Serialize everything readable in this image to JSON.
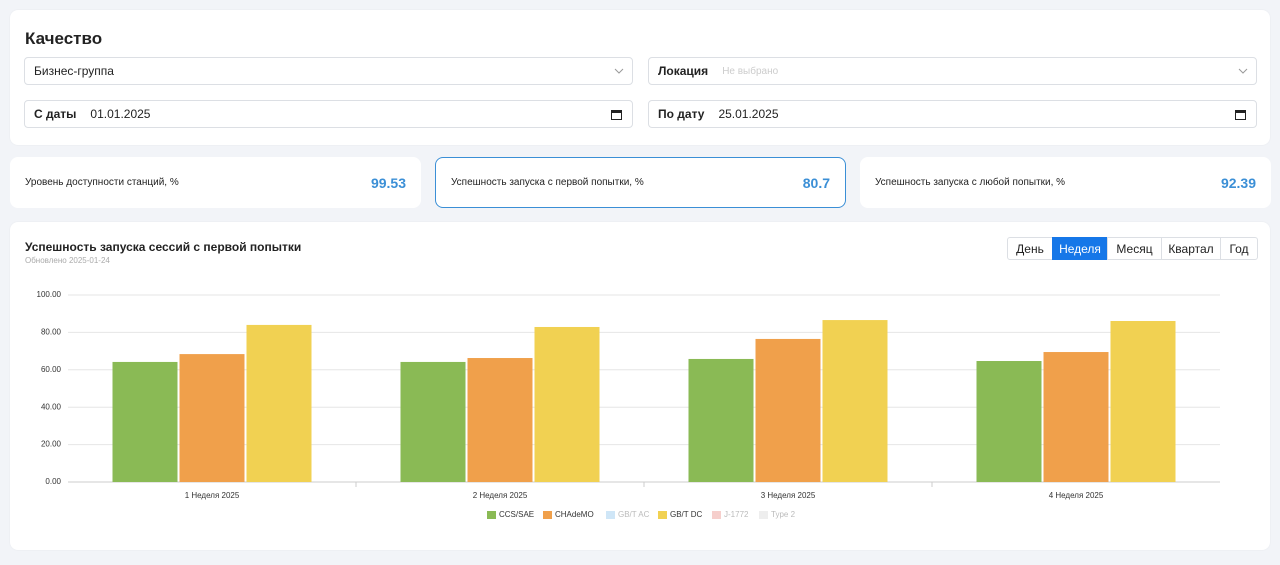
{
  "header": {
    "title": "Качество"
  },
  "filters": {
    "business_group": "Бизнес-группа",
    "location": {
      "label": "Локация",
      "placeholder": "Не выбрано"
    },
    "date_from": {
      "label": "С даты",
      "value": "01.01.2025"
    },
    "date_to": {
      "label": "По дату",
      "value": "25.01.2025"
    }
  },
  "kpis": [
    {
      "label": "Уровень доступности станций, %",
      "value": 99.53
    },
    {
      "label": "Успешность запуска с первой попытки, %",
      "value": 80.7
    },
    {
      "label": "Успешность запуска с любой попытки, %",
      "value": 92.39
    }
  ],
  "selected_kpi": 1,
  "chart_data": {
    "type": "bar",
    "title": "Успешность запуска сессий с первой попытки",
    "subtitle": "Обновлено 2025-01-24",
    "period_buttons": [
      "День",
      "Неделя",
      "Месяц",
      "Квартал",
      "Год"
    ],
    "selected_period": "Неделя",
    "categories": [
      "1 Неделя 2025",
      "2 Неделя 2025",
      "3 Неделя 2025",
      "4 Неделя 2025"
    ],
    "series": [
      {
        "name": "CCS/SAE",
        "color": "#8aba55",
        "values": [
          64.2,
          64.2,
          65.8,
          64.7
        ]
      },
      {
        "name": "CHAdeMO",
        "color": "#f0a04b",
        "values": [
          68.4,
          66.3,
          76.5,
          69.5
        ]
      },
      {
        "name": "GB/T AC",
        "color": "#cfe6f7",
        "hidden": true,
        "values": [
          null,
          null,
          null,
          null
        ]
      },
      {
        "name": "GB/T DC",
        "color": "#f1d152",
        "values": [
          84,
          82.9,
          86.6,
          86.1
        ]
      },
      {
        "name": "J-1772",
        "color": "#f6cfcc",
        "hidden": true,
        "values": [
          null,
          null,
          null,
          null
        ]
      },
      {
        "name": "Type 2",
        "color": "#eeeeee",
        "hidden": true,
        "values": [
          null,
          null,
          null,
          null
        ]
      }
    ],
    "ylim": [
      0,
      100
    ],
    "yticks": [
      {
        "value": 0,
        "label": "0.00"
      },
      {
        "value": 20,
        "label": "20.00"
      },
      {
        "value": 40,
        "label": "40.00"
      },
      {
        "value": 60,
        "label": "60.00"
      },
      {
        "value": 80,
        "label": "80.00"
      },
      {
        "value": 100,
        "label": "100.00"
      }
    ],
    "grid": true
  }
}
